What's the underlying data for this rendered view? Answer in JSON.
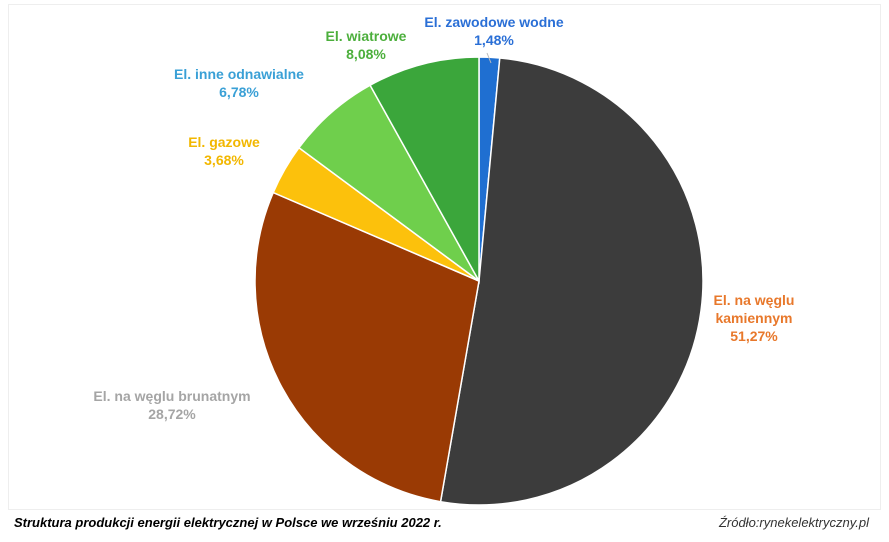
{
  "chart_data": {
    "type": "pie",
    "title": "",
    "caption": "Struktura produkcji energii elektrycznej w Polsce we wrześniu 2022 r.",
    "source": "Źródło:rynekelektryczny.pl",
    "start_angle_deg": 0,
    "direction": "clockwise",
    "slices": [
      {
        "label": "El. zawodowe wodne",
        "value_text": "1,48%",
        "value": 1.48,
        "color": "#1f6fd1",
        "label_color": "#2a6fd6"
      },
      {
        "label": "El. na węglu kamiennym",
        "value_text": "51,27%",
        "value": 51.27,
        "color": "#3c3c3c",
        "label_color": "#e8782b"
      },
      {
        "label": "El. na węglu brunatnym",
        "value_text": "28,72%",
        "value": 28.72,
        "color": "#9a3a04",
        "label_color": "#a5a5a5"
      },
      {
        "label": "El. gazowe",
        "value_text": "3,68%",
        "value": 3.68,
        "color": "#fcc10c",
        "label_color": "#f2b700"
      },
      {
        "label": "El. inne odnawialne",
        "value_text": "6,78%",
        "value": 6.78,
        "color": "#6fcf4c",
        "label_color": "#3aa0d6"
      },
      {
        "label": "El. wiatrowe",
        "value_text": "8,08%",
        "value": 8.08,
        "color": "#3ba63b",
        "label_color": "#4caf3c"
      }
    ],
    "label_lines": [
      {
        "label": "El. zawodowe wodne",
        "value": ""
      },
      {
        "label": "El. na węglu kamiennym",
        "value": ""
      }
    ]
  }
}
